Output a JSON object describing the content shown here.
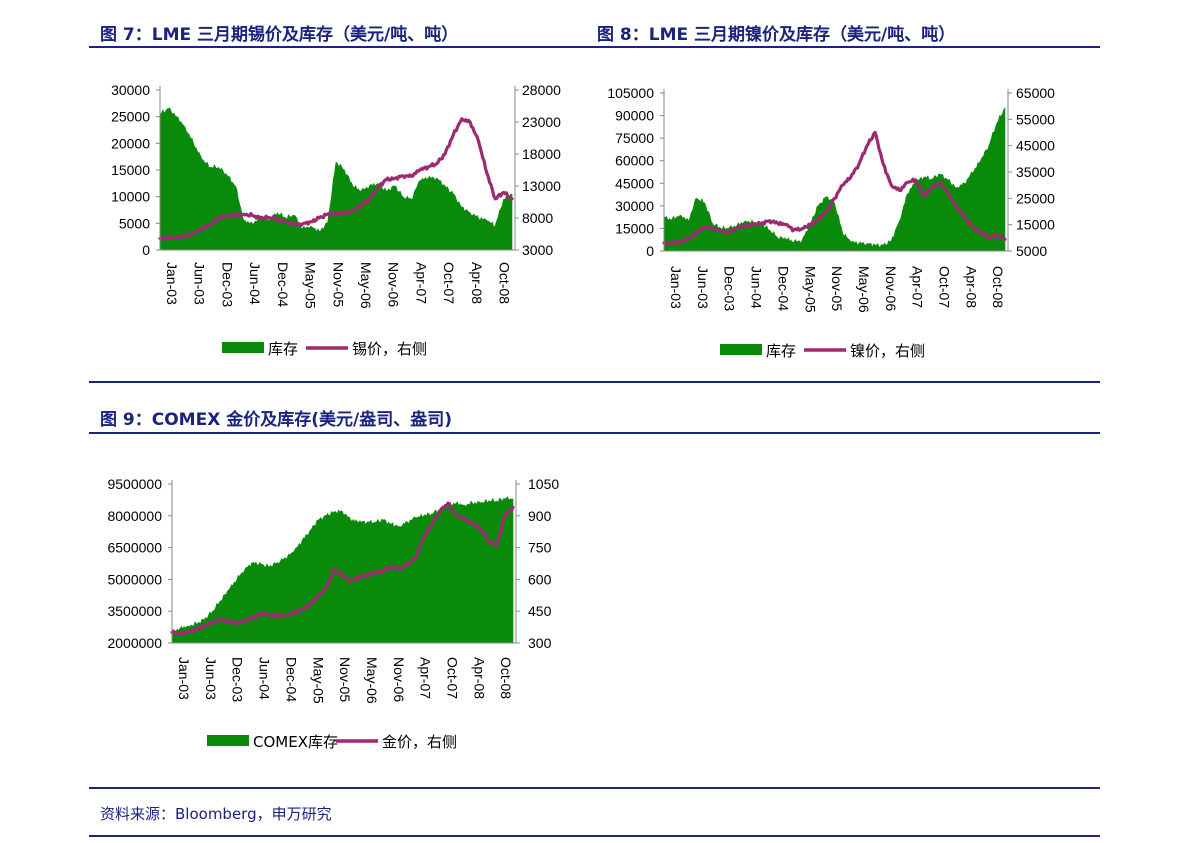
{
  "figures": {
    "fig7_title": "图 7：LME 三月期锡价及库存（美元/吨、吨）",
    "fig8_title": "图 8：LME 三月期镍价及库存（美元/吨、吨）",
    "fig9_title": "图 9：COMEX 金价及库存(美元/盎司、盎司)"
  },
  "source": "资料来源：Bloomberg，申万研究",
  "colors": {
    "stock": "#0a8a0a",
    "price": "#9c2a6e",
    "rule": "#1a237e"
  },
  "chart_data": [
    {
      "id": "tin",
      "type": "area+line",
      "x_labels": [
        "Jan-03",
        "Jun-03",
        "Dec-03",
        "Jun-04",
        "Dec-04",
        "May-05",
        "Nov-05",
        "May-06",
        "Nov-06",
        "Apr-07",
        "Oct-07",
        "Apr-08",
        "Oct-08"
      ],
      "left_ticks": [
        "30000",
        "25000",
        "20000",
        "15000",
        "10000",
        "5000",
        "0"
      ],
      "right_ticks": [
        "28000",
        "23000",
        "18000",
        "13000",
        "8000",
        "3000"
      ],
      "left_range": [
        0,
        30000
      ],
      "right_range": [
        3000,
        28000
      ],
      "series": [
        {
          "name": "库存",
          "kind": "area",
          "axis": "left",
          "values": [
            25500,
            26500,
            25000,
            23000,
            20000,
            17000,
            15500,
            15500,
            14000,
            12000,
            5500,
            5000,
            6000,
            5500,
            7000,
            6000,
            6500,
            4000,
            4500,
            3500,
            5000,
            16500,
            15000,
            12000,
            11000,
            12000,
            12500,
            11000,
            12000,
            10000,
            9500,
            13000,
            13500,
            13500,
            12000,
            10500,
            8000,
            7000,
            6000,
            5500,
            4500,
            9500,
            10500
          ]
        },
        {
          "name": "锡价，右侧",
          "kind": "line",
          "axis": "right",
          "values": [
            4800,
            4900,
            5000,
            5200,
            5600,
            6300,
            7000,
            8000,
            8300,
            8500,
            8600,
            8400,
            8000,
            8100,
            7800,
            7300,
            7000,
            7100,
            7400,
            8000,
            8600,
            8800,
            8700,
            9000,
            10000,
            11000,
            12800,
            14000,
            14200,
            14600,
            14500,
            15500,
            16000,
            16500,
            18000,
            21000,
            23500,
            23000,
            20000,
            15000,
            11000,
            12000,
            11000
          ]
        }
      ],
      "legend": [
        "库存",
        "锡价，右侧"
      ]
    },
    {
      "id": "nickel",
      "type": "area+line",
      "x_labels": [
        "Jan-03",
        "Jun-03",
        "Dec-03",
        "Jun-04",
        "Dec-04",
        "May-05",
        "Nov-05",
        "May-06",
        "Nov-06",
        "Apr-07",
        "Oct-07",
        "Apr-08",
        "Oct-08"
      ],
      "left_ticks": [
        "105000",
        "90000",
        "75000",
        "60000",
        "45000",
        "30000",
        "15000",
        "0"
      ],
      "right_ticks": [
        "65000",
        "55000",
        "45000",
        "35000",
        "25000",
        "15000",
        "5000"
      ],
      "left_range": [
        0,
        105000
      ],
      "right_range": [
        5000,
        65000
      ],
      "series": [
        {
          "name": "库存",
          "kind": "area",
          "axis": "left",
          "values": [
            22000,
            21000,
            24000,
            20000,
            35000,
            32000,
            18000,
            15000,
            15000,
            17000,
            20000,
            19000,
            18000,
            14000,
            9000,
            8000,
            6000,
            7000,
            18000,
            30000,
            36000,
            32000,
            12000,
            6000,
            5000,
            5000,
            4000,
            3500,
            7000,
            20000,
            38000,
            46000,
            49000,
            48000,
            51000,
            47000,
            42000,
            45000,
            52000,
            60000,
            70000,
            85000,
            95000
          ]
        },
        {
          "name": "镍价，右侧",
          "kind": "line",
          "axis": "right",
          "values": [
            8000,
            8200,
            8500,
            9500,
            12000,
            14000,
            13500,
            12500,
            12000,
            14000,
            14500,
            15000,
            15500,
            16500,
            15500,
            15000,
            13000,
            13500,
            15000,
            17000,
            20000,
            25000,
            30000,
            33000,
            38000,
            45000,
            50000,
            38000,
            30000,
            28000,
            31000,
            32000,
            26000,
            29000,
            31000,
            27000,
            22000,
            18000,
            14000,
            12000,
            10000,
            11000,
            9500
          ]
        }
      ],
      "legend": [
        "库存",
        "镍价，右侧"
      ]
    },
    {
      "id": "gold",
      "type": "area+line",
      "x_labels": [
        "Jan-03",
        "Jun-03",
        "Dec-03",
        "Jun-04",
        "Dec-04",
        "May-05",
        "Nov-05",
        "May-06",
        "Nov-06",
        "Apr-07",
        "Oct-07",
        "Apr-08",
        "Oct-08"
      ],
      "left_ticks": [
        "9500000",
        "8000000",
        "6500000",
        "5000000",
        "3500000",
        "2000000"
      ],
      "right_ticks": [
        "1050",
        "900",
        "750",
        "600",
        "450",
        "300"
      ],
      "left_range": [
        2000000,
        9500000
      ],
      "right_range": [
        300,
        1050
      ],
      "series": [
        {
          "name": "COMEX库存",
          "kind": "area",
          "axis": "left",
          "values": [
            2500000,
            2700000,
            2800000,
            2900000,
            3100000,
            3500000,
            4000000,
            4500000,
            5000000,
            5500000,
            5800000,
            5700000,
            5600000,
            5800000,
            6000000,
            6300000,
            6800000,
            7300000,
            7800000,
            8000000,
            8200000,
            8200000,
            7800000,
            7700000,
            7700000,
            7700000,
            7800000,
            7600000,
            7500000,
            7700000,
            7900000,
            8000000,
            8100000,
            8300000,
            8500000,
            8600000,
            8500000,
            8600000,
            8600000,
            8700000,
            8700000,
            8800000,
            8800000
          ]
        },
        {
          "name": "金价，右侧",
          "kind": "line",
          "axis": "right",
          "values": [
            350,
            345,
            350,
            365,
            380,
            400,
            410,
            400,
            395,
            405,
            420,
            440,
            435,
            430,
            430,
            440,
            460,
            480,
            520,
            560,
            650,
            620,
            590,
            610,
            620,
            630,
            640,
            660,
            650,
            670,
            700,
            800,
            860,
            920,
            960,
            900,
            890,
            860,
            840,
            780,
            760,
            900,
            940
          ]
        }
      ],
      "legend": [
        "COMEX库存",
        "金价，右侧"
      ]
    }
  ]
}
